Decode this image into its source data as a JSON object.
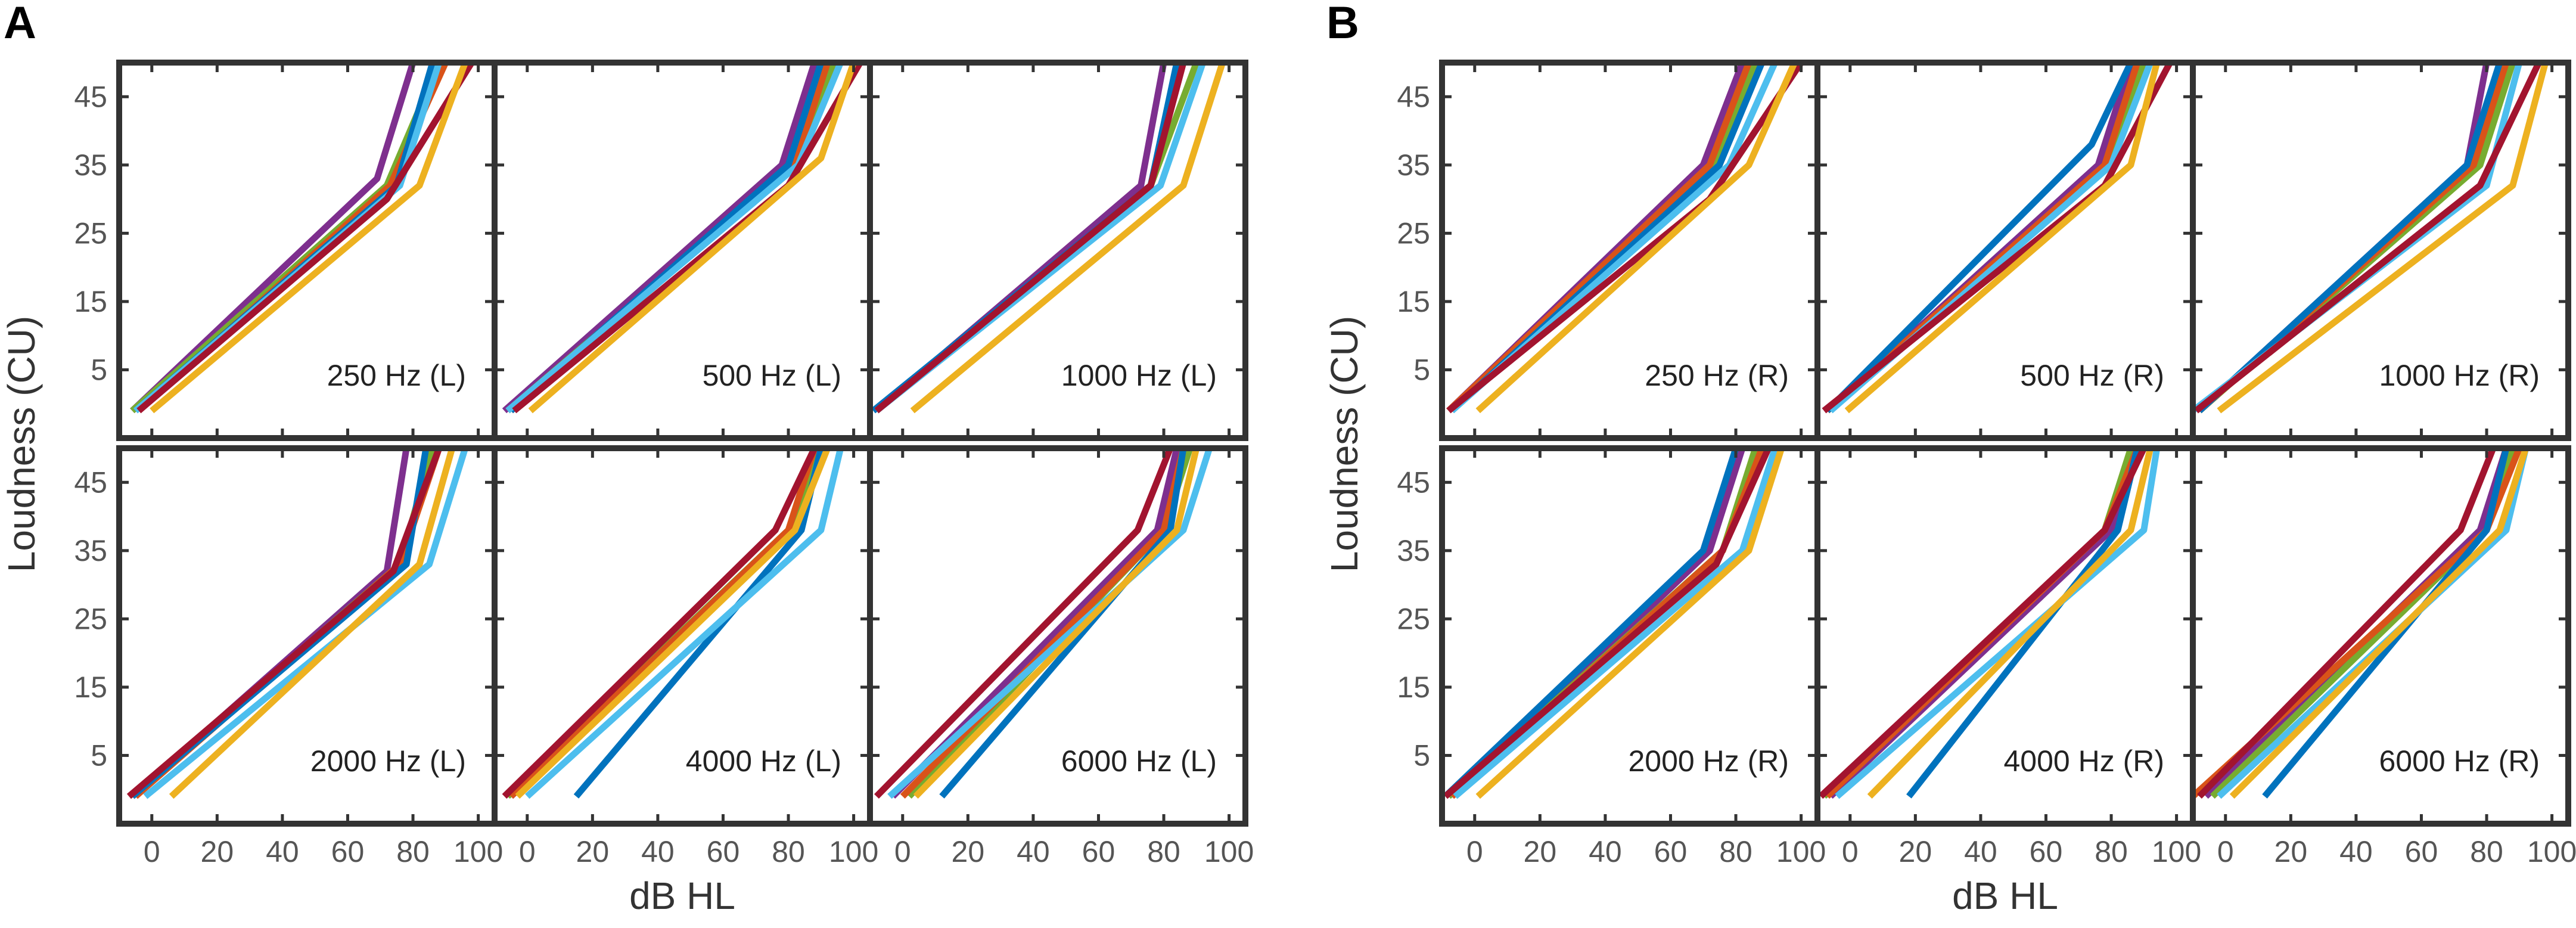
{
  "figure": {
    "panel_letters": [
      "A",
      "B"
    ],
    "xlabel": "dB HL",
    "ylabel": "Loudness (CU)",
    "x_ticks": [
      0,
      20,
      40,
      60,
      80,
      100
    ],
    "y_ticks": [
      5,
      15,
      25,
      35,
      45
    ],
    "xlim": [
      -10,
      105
    ],
    "ylim": [
      -5,
      50
    ]
  },
  "chart_data": [
    {
      "type": "line",
      "panel": "A",
      "xlabel": "dB HL",
      "ylabel": "Loudness (CU)",
      "xlim": [
        -10,
        105
      ],
      "ylim": [
        -5,
        50
      ],
      "subplots": [
        {
          "title": "250 Hz (L)",
          "series": [
            {
              "name": "purple",
              "color": "#7E2F8E",
              "x0": -6,
              "xk": 69,
              "yk": 33,
              "xt": 80,
              "yt": 50
            },
            {
              "name": "green",
              "color": "#77AC30",
              "x0": -6,
              "xk": 72,
              "yk": 32,
              "xt": 88,
              "yt": 50
            },
            {
              "name": "orange",
              "color": "#D95319",
              "x0": -4,
              "xk": 73,
              "yk": 32,
              "xt": 90,
              "yt": 50
            },
            {
              "name": "blue",
              "color": "#0072BD",
              "x0": -5,
              "xk": 75,
              "yk": 32,
              "xt": 86,
              "yt": 50
            },
            {
              "name": "light-blue",
              "color": "#4DBEEE",
              "x0": -5,
              "xk": 76,
              "yk": 32,
              "xt": 88,
              "yt": 50
            },
            {
              "name": "red",
              "color": "#A2142F",
              "x0": -4,
              "xk": 72,
              "yk": 30,
              "xt": 98,
              "yt": 50
            },
            {
              "name": "yellow",
              "color": "#EDB120",
              "x0": 0,
              "xk": 82,
              "yk": 32,
              "xt": 96,
              "yt": 50
            }
          ]
        },
        {
          "title": "500 Hz (L)",
          "series": [
            {
              "name": "purple",
              "color": "#7E2F8E",
              "x0": -7,
              "xk": 78,
              "yk": 35,
              "xt": 88,
              "yt": 50
            },
            {
              "name": "green",
              "color": "#77AC30",
              "x0": -6,
              "xk": 82,
              "yk": 35,
              "xt": 94,
              "yt": 50
            },
            {
              "name": "orange",
              "color": "#D95319",
              "x0": -5,
              "xk": 82,
              "yk": 35,
              "xt": 92,
              "yt": 50
            },
            {
              "name": "blue",
              "color": "#0072BD",
              "x0": -5,
              "xk": 80,
              "yk": 35,
              "xt": 90,
              "yt": 50
            },
            {
              "name": "light-blue",
              "color": "#4DBEEE",
              "x0": -6,
              "xk": 83,
              "yk": 35,
              "xt": 96,
              "yt": 50
            },
            {
              "name": "red",
              "color": "#A2142F",
              "x0": -4,
              "xk": 80,
              "yk": 32,
              "xt": 102,
              "yt": 50
            },
            {
              "name": "yellow",
              "color": "#EDB120",
              "x0": 1,
              "xk": 90,
              "yk": 36,
              "xt": 100,
              "yt": 50
            }
          ]
        },
        {
          "title": "1000 Hz (L)",
          "series": [
            {
              "name": "purple",
              "color": "#7E2F8E",
              "x0": -8,
              "xk": 73,
              "yk": 32,
              "xt": 80,
              "yt": 50
            },
            {
              "name": "green",
              "color": "#77AC30",
              "x0": -8,
              "xk": 76,
              "yk": 32,
              "xt": 90,
              "yt": 50
            },
            {
              "name": "orange",
              "color": "#D95319",
              "x0": -8,
              "xk": 76,
              "yk": 32,
              "xt": 86,
              "yt": 50
            },
            {
              "name": "blue",
              "color": "#0072BD",
              "x0": -9,
              "xk": 76,
              "yk": 32,
              "xt": 84,
              "yt": 50
            },
            {
              "name": "light-blue",
              "color": "#4DBEEE",
              "x0": -8,
              "xk": 79,
              "yk": 32,
              "xt": 92,
              "yt": 50
            },
            {
              "name": "red",
              "color": "#A2142F",
              "x0": -8,
              "xk": 76,
              "yk": 32,
              "xt": 86,
              "yt": 50
            },
            {
              "name": "yellow",
              "color": "#EDB120",
              "x0": 3,
              "xk": 86,
              "yk": 32,
              "xt": 98,
              "yt": 50
            }
          ]
        },
        {
          "title": "2000 Hz (L)",
          "series": [
            {
              "name": "purple",
              "color": "#7E2F8E",
              "x0": -6,
              "xk": 72,
              "yk": 32,
              "xt": 78,
              "yt": 50
            },
            {
              "name": "green",
              "color": "#77AC30",
              "x0": -6,
              "xk": 76,
              "yk": 33,
              "xt": 86,
              "yt": 50
            },
            {
              "name": "orange",
              "color": "#D95319",
              "x0": -5,
              "xk": 76,
              "yk": 33,
              "xt": 88,
              "yt": 50
            },
            {
              "name": "blue",
              "color": "#0072BD",
              "x0": -6,
              "xk": 78,
              "yk": 33,
              "xt": 84,
              "yt": 50
            },
            {
              "name": "light-blue",
              "color": "#4DBEEE",
              "x0": -2,
              "xk": 85,
              "yk": 33,
              "xt": 96,
              "yt": 50
            },
            {
              "name": "red",
              "color": "#A2142F",
              "x0": -7,
              "xk": 74,
              "yk": 32,
              "xt": 88,
              "yt": 50
            },
            {
              "name": "yellow",
              "color": "#EDB120",
              "x0": 6,
              "xk": 82,
              "yk": 33,
              "xt": 92,
              "yt": 50
            }
          ]
        },
        {
          "title": "4000 Hz (L)",
          "series": [
            {
              "name": "purple",
              "color": "#7E2F8E",
              "x0": -5,
              "xk": 82,
              "yk": 38,
              "xt": 90,
              "yt": 50
            },
            {
              "name": "green",
              "color": "#77AC30",
              "x0": -6,
              "xk": 80,
              "yk": 38,
              "xt": 90,
              "yt": 50
            },
            {
              "name": "orange",
              "color": "#D95319",
              "x0": -5,
              "xk": 80,
              "yk": 38,
              "xt": 88,
              "yt": 50
            },
            {
              "name": "blue",
              "color": "#0072BD",
              "x0": 15,
              "xk": 84,
              "yk": 38,
              "xt": 90,
              "yt": 50
            },
            {
              "name": "light-blue",
              "color": "#4DBEEE",
              "x0": 0,
              "xk": 90,
              "yk": 38,
              "xt": 96,
              "yt": 50
            },
            {
              "name": "red",
              "color": "#A2142F",
              "x0": -7,
              "xk": 76,
              "yk": 38,
              "xt": 88,
              "yt": 50
            },
            {
              "name": "yellow",
              "color": "#EDB120",
              "x0": -3,
              "xk": 82,
              "yk": 38,
              "xt": 92,
              "yt": 50
            }
          ]
        },
        {
          "title": "6000 Hz (L)",
          "series": [
            {
              "name": "purple",
              "color": "#7E2F8E",
              "x0": -3,
              "xk": 78,
              "yk": 38,
              "xt": 84,
              "yt": 50
            },
            {
              "name": "green",
              "color": "#77AC30",
              "x0": 2,
              "xk": 80,
              "yk": 38,
              "xt": 88,
              "yt": 50
            },
            {
              "name": "orange",
              "color": "#D95319",
              "x0": 0,
              "xk": 80,
              "yk": 38,
              "xt": 86,
              "yt": 50
            },
            {
              "name": "blue",
              "color": "#0072BD",
              "x0": 12,
              "xk": 82,
              "yk": 38,
              "xt": 86,
              "yt": 50
            },
            {
              "name": "light-blue",
              "color": "#4DBEEE",
              "x0": -4,
              "xk": 86,
              "yk": 38,
              "xt": 94,
              "yt": 50
            },
            {
              "name": "red",
              "color": "#A2142F",
              "x0": -8,
              "xk": 72,
              "yk": 38,
              "xt": 82,
              "yt": 50
            },
            {
              "name": "yellow",
              "color": "#EDB120",
              "x0": 4,
              "xk": 84,
              "yk": 38,
              "xt": 90,
              "yt": 50
            }
          ]
        }
      ]
    },
    {
      "type": "line",
      "panel": "B",
      "xlabel": "dB HL",
      "ylabel": "Loudness (CU)",
      "xlim": [
        -10,
        105
      ],
      "ylim": [
        -5,
        50
      ],
      "subplots": [
        {
          "title": "250 Hz (R)",
          "series": [
            {
              "name": "purple",
              "color": "#7E2F8E",
              "x0": -8,
              "xk": 70,
              "yk": 35,
              "xt": 82,
              "yt": 50
            },
            {
              "name": "green",
              "color": "#77AC30",
              "x0": -8,
              "xk": 74,
              "yk": 35,
              "xt": 86,
              "yt": 50
            },
            {
              "name": "orange",
              "color": "#D95319",
              "x0": -8,
              "xk": 72,
              "yk": 35,
              "xt": 84,
              "yt": 50
            },
            {
              "name": "blue",
              "color": "#0072BD",
              "x0": -7,
              "xk": 75,
              "yk": 35,
              "xt": 88,
              "yt": 50
            },
            {
              "name": "light-blue",
              "color": "#4DBEEE",
              "x0": -7,
              "xk": 78,
              "yk": 35,
              "xt": 92,
              "yt": 50
            },
            {
              "name": "red",
              "color": "#A2142F",
              "x0": -8,
              "xk": 72,
              "yk": 30,
              "xt": 100,
              "yt": 50
            },
            {
              "name": "yellow",
              "color": "#EDB120",
              "x0": 1,
              "xk": 84,
              "yk": 35,
              "xt": 98,
              "yt": 50
            }
          ]
        },
        {
          "title": "500 Hz (R)",
          "series": [
            {
              "name": "purple",
              "color": "#7E2F8E",
              "x0": -7,
              "xk": 76,
              "yk": 35,
              "xt": 86,
              "yt": 50
            },
            {
              "name": "green",
              "color": "#77AC30",
              "x0": -7,
              "xk": 80,
              "yk": 35,
              "xt": 90,
              "yt": 50
            },
            {
              "name": "orange",
              "color": "#D95319",
              "x0": -7,
              "xk": 78,
              "yk": 35,
              "xt": 88,
              "yt": 50
            },
            {
              "name": "blue",
              "color": "#0072BD",
              "x0": -7,
              "xk": 74,
              "yk": 38,
              "xt": 86,
              "yt": 50
            },
            {
              "name": "light-blue",
              "color": "#4DBEEE",
              "x0": -6,
              "xk": 80,
              "yk": 35,
              "xt": 92,
              "yt": 50
            },
            {
              "name": "red",
              "color": "#A2142F",
              "x0": -8,
              "xk": 78,
              "yk": 32,
              "xt": 98,
              "yt": 50
            },
            {
              "name": "yellow",
              "color": "#EDB120",
              "x0": -1,
              "xk": 86,
              "yk": 35,
              "xt": 94,
              "yt": 50
            }
          ]
        },
        {
          "title": "1000 Hz (R)",
          "series": [
            {
              "name": "purple",
              "color": "#7E2F8E",
              "x0": -8,
              "xk": 74,
              "yk": 35,
              "xt": 80,
              "yt": 50
            },
            {
              "name": "green",
              "color": "#77AC30",
              "x0": -8,
              "xk": 78,
              "yk": 35,
              "xt": 88,
              "yt": 50
            },
            {
              "name": "orange",
              "color": "#D95319",
              "x0": -8,
              "xk": 76,
              "yk": 35,
              "xt": 86,
              "yt": 50
            },
            {
              "name": "blue",
              "color": "#0072BD",
              "x0": -8,
              "xk": 74,
              "yk": 35,
              "xt": 84,
              "yt": 50
            },
            {
              "name": "light-blue",
              "color": "#4DBEEE",
              "x0": -10,
              "xk": 80,
              "yk": 32,
              "xt": 90,
              "yt": 50
            },
            {
              "name": "red",
              "color": "#A2142F",
              "x0": -9,
              "xk": 78,
              "yk": 32,
              "xt": 96,
              "yt": 50
            },
            {
              "name": "yellow",
              "color": "#EDB120",
              "x0": -2,
              "xk": 88,
              "yk": 32,
              "xt": 98,
              "yt": 50
            }
          ]
        },
        {
          "title": "2000 Hz (R)",
          "series": [
            {
              "name": "purple",
              "color": "#7E2F8E",
              "x0": -7,
              "xk": 72,
              "yk": 35,
              "xt": 82,
              "yt": 50
            },
            {
              "name": "green",
              "color": "#77AC30",
              "x0": -8,
              "xk": 76,
              "yk": 35,
              "xt": 86,
              "yt": 50
            },
            {
              "name": "orange",
              "color": "#D95319",
              "x0": -7,
              "xk": 76,
              "yk": 35,
              "xt": 88,
              "yt": 50
            },
            {
              "name": "blue",
              "color": "#0072BD",
              "x0": -9,
              "xk": 70,
              "yk": 35,
              "xt": 80,
              "yt": 50
            },
            {
              "name": "light-blue",
              "color": "#4DBEEE",
              "x0": -6,
              "xk": 82,
              "yk": 35,
              "xt": 92,
              "yt": 50
            },
            {
              "name": "red",
              "color": "#A2142F",
              "x0": -9,
              "xk": 74,
              "yk": 33,
              "xt": 90,
              "yt": 50
            },
            {
              "name": "yellow",
              "color": "#EDB120",
              "x0": 1,
              "xk": 84,
              "yk": 35,
              "xt": 94,
              "yt": 50
            }
          ]
        },
        {
          "title": "4000 Hz (R)",
          "series": [
            {
              "name": "purple",
              "color": "#7E2F8E",
              "x0": -6,
              "xk": 80,
              "yk": 38,
              "xt": 88,
              "yt": 50
            },
            {
              "name": "green",
              "color": "#77AC30",
              "x0": -8,
              "xk": 78,
              "yk": 38,
              "xt": 86,
              "yt": 50
            },
            {
              "name": "orange",
              "color": "#D95319",
              "x0": -7,
              "xk": 78,
              "yk": 38,
              "xt": 88,
              "yt": 50
            },
            {
              "name": "blue",
              "color": "#0072BD",
              "x0": 18,
              "xk": 82,
              "yk": 38,
              "xt": 88,
              "yt": 50
            },
            {
              "name": "light-blue",
              "color": "#4DBEEE",
              "x0": -4,
              "xk": 90,
              "yk": 38,
              "xt": 94,
              "yt": 50
            },
            {
              "name": "red",
              "color": "#A2142F",
              "x0": -9,
              "xk": 78,
              "yk": 38,
              "xt": 90,
              "yt": 50
            },
            {
              "name": "yellow",
              "color": "#EDB120",
              "x0": 6,
              "xk": 86,
              "yk": 38,
              "xt": 92,
              "yt": 50
            }
          ]
        },
        {
          "title": "6000 Hz (R)",
          "series": [
            {
              "name": "purple",
              "color": "#7E2F8E",
              "x0": -6,
              "xk": 78,
              "yk": 38,
              "xt": 86,
              "yt": 50
            },
            {
              "name": "green",
              "color": "#77AC30",
              "x0": -4,
              "xk": 80,
              "yk": 38,
              "xt": 88,
              "yt": 50
            },
            {
              "name": "orange",
              "color": "#D95319",
              "x0": -10,
              "xk": 80,
              "yk": 38,
              "xt": 90,
              "yt": 50
            },
            {
              "name": "blue",
              "color": "#0072BD",
              "x0": 12,
              "xk": 80,
              "yk": 38,
              "xt": 86,
              "yt": 50
            },
            {
              "name": "light-blue",
              "color": "#4DBEEE",
              "x0": -2,
              "xk": 86,
              "yk": 38,
              "xt": 92,
              "yt": 50
            },
            {
              "name": "red",
              "color": "#A2142F",
              "x0": -8,
              "xk": 72,
              "yk": 38,
              "xt": 82,
              "yt": 50
            },
            {
              "name": "yellow",
              "color": "#EDB120",
              "x0": 2,
              "xk": 84,
              "yk": 38,
              "xt": 92,
              "yt": 50
            }
          ]
        }
      ]
    }
  ]
}
